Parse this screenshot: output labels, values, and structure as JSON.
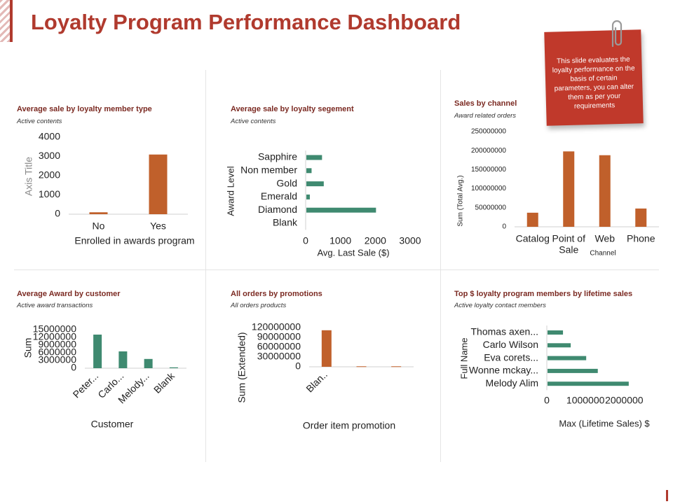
{
  "page": {
    "title": "Loyalty Program Performance Dashboard",
    "note": "This slide evaluates the loyalty performance on the basis of certain parameters, you can alter them as per your requirements"
  },
  "colors": {
    "orange": "#c0602b",
    "green": "#3f8a70",
    "accent": "#b03a2e",
    "title_text": "#7b2a22"
  },
  "icons": [
    "paperclip-icon"
  ],
  "chart_data": [
    {
      "id": "c1",
      "type": "bar",
      "orientation": "vertical",
      "title": "Average sale by loyalty member type",
      "subtitle": "Active contents",
      "categories": [
        "No",
        "Yes"
      ],
      "values": [
        100,
        3100
      ],
      "xlabel": "Enrolled in awards program",
      "ylabel": "Axis Title",
      "ylim": [
        0,
        4000
      ],
      "yticks": [
        "0",
        "1000",
        "2000",
        "3000",
        "4000"
      ],
      "color": "#c0602b"
    },
    {
      "id": "c2",
      "type": "bar",
      "orientation": "horizontal",
      "title": "Average sale by loyalty segement",
      "subtitle": "Active contents",
      "categories": [
        "Sapphire",
        "Non member",
        "Gold",
        "Emerald",
        "Diamond",
        "Blank"
      ],
      "values": [
        450,
        150,
        500,
        100,
        2000,
        0
      ],
      "xlabel": "Avg. Last Sale ($)",
      "ylabel": "Award Level",
      "xlim": [
        0,
        3000
      ],
      "xticks": [
        "0",
        "1000",
        "2000",
        "3000"
      ],
      "color": "#3f8a70"
    },
    {
      "id": "c3",
      "type": "bar",
      "orientation": "vertical",
      "title": "Sales by channel",
      "subtitle": "Award related orders",
      "categories": [
        "Catalog",
        "Point of Sale",
        "Web",
        "Phone"
      ],
      "values": [
        37000000,
        198000000,
        188000000,
        48000000
      ],
      "xlabel": "Channel",
      "ylabel": "Sum (Total Avg.)",
      "ylim": [
        0,
        250000000
      ],
      "yticks": [
        "0",
        "50000000",
        "100000000",
        "150000000",
        "200000000",
        "250000000"
      ],
      "color": "#c0602b"
    },
    {
      "id": "c4",
      "type": "bar",
      "orientation": "vertical",
      "title": "Average Award by customer",
      "subtitle": "Active award transactions",
      "categories": [
        "Peter...",
        "Carlo...",
        "Melody...",
        "Blank"
      ],
      "values": [
        12000000,
        6000000,
        3300000,
        300000
      ],
      "xlabel": "Customer",
      "ylabel": "Sum",
      "ylim": [
        0,
        15000000
      ],
      "yticks": [
        "0",
        "3000000",
        "6000000",
        "9000000",
        "12000000",
        "15000000"
      ],
      "color": "#3f8a70"
    },
    {
      "id": "c5",
      "type": "bar",
      "orientation": "vertical",
      "title": "All orders by promotions",
      "subtitle": "All orders products",
      "categories": [
        "Blan..",
        "",
        ""
      ],
      "values": [
        108000000,
        1500000,
        1500000
      ],
      "xlabel": "Order item promotion",
      "ylabel": "Sum (Extended)",
      "ylim": [
        0,
        120000000
      ],
      "yticks": [
        "0",
        "30000000",
        "60000000",
        "90000000",
        "120000000"
      ],
      "color": "#c0602b"
    },
    {
      "id": "c6",
      "type": "bar",
      "orientation": "horizontal",
      "title": "Top $ loyalty program members by lifetime sales",
      "subtitle": "Active loyalty contact members",
      "categories": [
        "Thomas axen...",
        "Carlo Wilson",
        "Eva corets...",
        "Wonne mckay...",
        "Melody Alim"
      ],
      "values": [
        400000,
        600000,
        1000000,
        1300000,
        2100000
      ],
      "xlabel": "Max (Lifetime Sales) $",
      "ylabel": "Full Name",
      "xlim": [
        0,
        2900000
      ],
      "xticks": [
        "0",
        "1000000",
        "2000000"
      ],
      "color": "#3f8a70"
    }
  ]
}
